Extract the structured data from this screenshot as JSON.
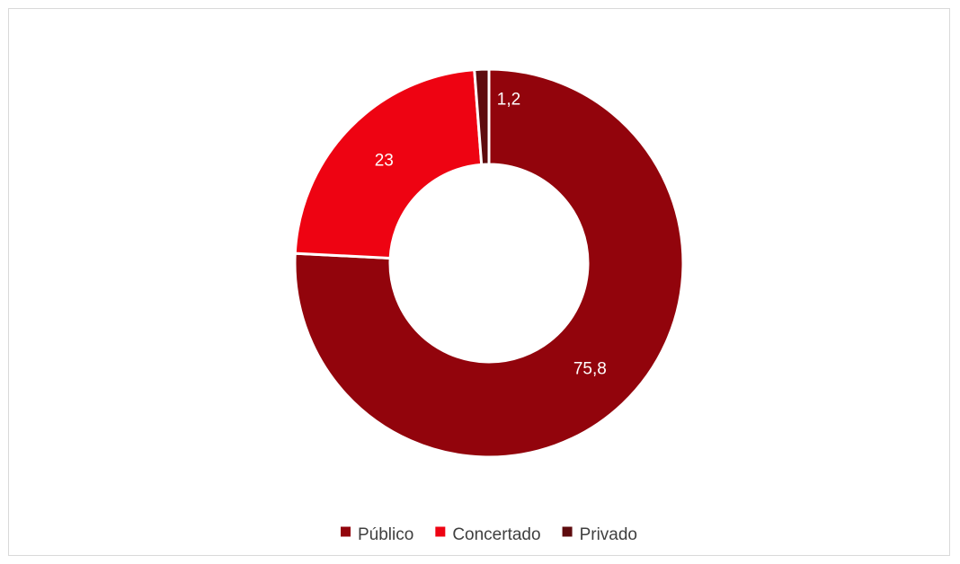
{
  "chart_data": {
    "type": "pie",
    "donut": true,
    "categories": [
      "Público",
      "Concertado",
      "Privado"
    ],
    "values": [
      75.8,
      23,
      1.2
    ],
    "data_labels": [
      "75,8",
      "23",
      "1,2"
    ],
    "colors": [
      "#92040C",
      "#EE0312",
      "#5E0B0E"
    ],
    "slice_border_color": "#FFFFFF",
    "legend": {
      "position": "bottom",
      "entries": [
        "Público",
        "Concertado",
        "Privado"
      ]
    },
    "title": ""
  }
}
